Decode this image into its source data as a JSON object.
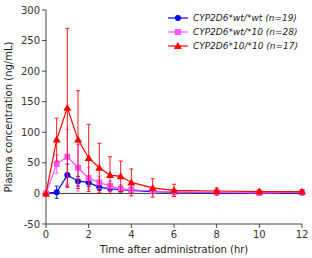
{
  "chart_data": {
    "type": "line",
    "x_label": "Time after administration  (hr)",
    "y_label": "Plasma concentration (ng/mL)",
    "x": [
      0,
      0.5,
      1,
      1.5,
      2,
      2.5,
      3,
      3.5,
      4,
      5,
      6,
      8,
      10,
      12
    ],
    "series": [
      {
        "name": "CYP2D6*wt/*wt (n=19)",
        "color": "#0000ee",
        "marker": "circle",
        "values": [
          0,
          2,
          30,
          20,
          18,
          10,
          8,
          6,
          5,
          3,
          2,
          1,
          1,
          1
        ],
        "errors": [
          0,
          10,
          18,
          8,
          7,
          5,
          4,
          3,
          3,
          2,
          1,
          1,
          1,
          1
        ]
      },
      {
        "name": "CYP2D6*wt/*10 (n=28)",
        "color": "#ff55ff",
        "marker": "square",
        "values": [
          0,
          48,
          60,
          42,
          25,
          18,
          12,
          8,
          6,
          4,
          2,
          2,
          1,
          2
        ],
        "errors": [
          0,
          15,
          45,
          38,
          18,
          10,
          8,
          6,
          5,
          3,
          2,
          2,
          1,
          2
        ]
      },
      {
        "name": "CYP2D6*10/*10 (n=17)",
        "color": "#ff0000",
        "marker": "triangle",
        "values": [
          0,
          88,
          140,
          88,
          58,
          42,
          30,
          28,
          18,
          9,
          5,
          4,
          3,
          3
        ],
        "errors": [
          0,
          35,
          130,
          80,
          55,
          40,
          30,
          25,
          22,
          15,
          10,
          5,
          3,
          2
        ]
      }
    ],
    "xlim": [
      0,
      12
    ],
    "xticks": [
      0,
      2,
      4,
      6,
      8,
      10,
      12
    ],
    "ylim": [
      -50,
      300
    ],
    "yticks": [
      -50,
      0,
      50,
      100,
      150,
      200,
      250,
      300
    ],
    "legend": "upper right",
    "grid": false
  }
}
